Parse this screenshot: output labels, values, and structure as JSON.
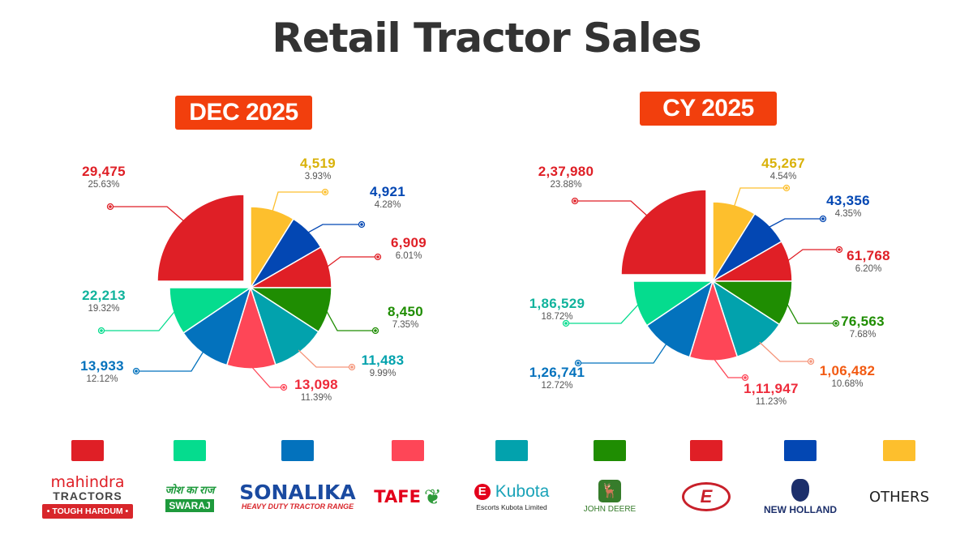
{
  "title": "Retail Tractor Sales",
  "colors": {
    "mahindra": "#df1f26",
    "swaraj": "#05dc8e",
    "sonalika": "#0372bd",
    "tafe": "#fe4657",
    "kubota": "#02a2ad",
    "john_deere": "#1f8d02",
    "escorts": "#e01f26",
    "new_holland": "#0347b3",
    "others": "#fdbf2d",
    "badge": "#f23f0d"
  },
  "legend": [
    {
      "brand": "Mahindra",
      "logo_line1": "mahindra",
      "logo_line2": "TRACTORS",
      "logo_line3": "• TOUGH HARDUM •",
      "color": "#df1f26"
    },
    {
      "brand": "Swaraj",
      "logo_line1": "जोश का राज",
      "logo_line2": "SWARAJ",
      "color": "#05dc8e"
    },
    {
      "brand": "Sonalika",
      "logo_line1": "SONALIKA",
      "logo_line2": "HEAVY DUTY TRACTOR RANGE",
      "color": "#0372bd"
    },
    {
      "brand": "TAFE",
      "logo_line1": "TAFE",
      "color": "#fe4657"
    },
    {
      "brand": "Escorts Kubota",
      "logo_line1": "Kubota",
      "logo_line2": "Escorts Kubota Limited",
      "color": "#02a2ad"
    },
    {
      "brand": "John Deere",
      "logo_line1": "JOHN DEERE",
      "color": "#1f8d02"
    },
    {
      "brand": "Eicher",
      "logo_line1": "E",
      "color": "#e01f26"
    },
    {
      "brand": "New Holland",
      "logo_line1": "NEW HOLLAND",
      "color": "#0347b3"
    },
    {
      "brand": "Others",
      "logo_line1": "OTHERS",
      "color": "#fdbf2d"
    }
  ],
  "chart_data": [
    {
      "type": "pie",
      "title": "DEC 2025",
      "categories": [
        "Mahindra",
        "Others",
        "New Holland",
        "Eicher",
        "John Deere",
        "Escorts Kubota",
        "TAFE",
        "Sonalika",
        "Swaraj"
      ],
      "values": [
        29475,
        4519,
        4921,
        6909,
        8450,
        11483,
        13098,
        13933,
        22213
      ],
      "value_labels": [
        "29,475",
        "4,519",
        "4,921",
        "6,909",
        "8,450",
        "11,483",
        "13,098",
        "13,933",
        "22,213"
      ],
      "percentages": [
        "25.63%",
        "3.93%",
        "4.28%",
        "6.01%",
        "7.35%",
        "9.99%",
        "11.39%",
        "12.12%",
        "19.32%"
      ],
      "label_colors": [
        "#df1f26",
        "#d9b20a",
        "#0347b3",
        "#df1f26",
        "#1f8d02",
        "#02a2ad",
        "#ee2b3b",
        "#0372bd",
        "#10b39c"
      ],
      "legend_position": "bottom"
    },
    {
      "type": "pie",
      "title": "CY 2025",
      "categories": [
        "Mahindra",
        "Others",
        "New Holland",
        "Eicher",
        "John Deere",
        "Escorts Kubota",
        "TAFE",
        "Sonalika",
        "Swaraj"
      ],
      "values": [
        237980,
        45267,
        43356,
        61768,
        76563,
        106482,
        111947,
        126741,
        186529
      ],
      "value_labels": [
        "2,37,980",
        "45,267",
        "43,356",
        "61,768",
        "76,563",
        "1,06,482",
        "1,11,947",
        "1,26,741",
        "1,86,529"
      ],
      "percentages": [
        "23.88%",
        "4.54%",
        "4.35%",
        "6.20%",
        "7.68%",
        "10.68%",
        "11.23%",
        "12.72%",
        "18.72%"
      ],
      "label_colors": [
        "#df1f26",
        "#d9b20a",
        "#0347b3",
        "#df1f26",
        "#1f8d02",
        "#f25a12",
        "#ee2b3b",
        "#0372bd",
        "#10b39c"
      ],
      "legend_position": "bottom"
    }
  ]
}
